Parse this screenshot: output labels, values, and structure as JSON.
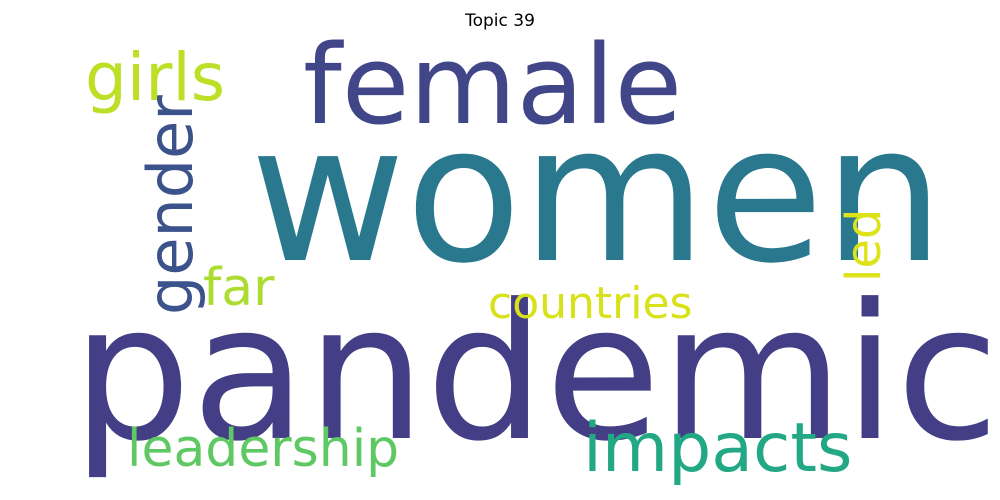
{
  "title": "Topic 39",
  "words": [
    {
      "id": "women",
      "text": "women",
      "color": "#2a788e",
      "orientation": "horizontal"
    },
    {
      "id": "pandemic",
      "text": "pandemic",
      "color": "#433e85",
      "orientation": "horizontal"
    },
    {
      "id": "female",
      "text": "female",
      "color": "#404688",
      "orientation": "horizontal"
    },
    {
      "id": "girls",
      "text": "girls",
      "color": "#bddf26",
      "orientation": "horizontal"
    },
    {
      "id": "gender",
      "text": "gender",
      "color": "#3b528b",
      "orientation": "vertical"
    },
    {
      "id": "far",
      "text": "far",
      "color": "#addc30",
      "orientation": "horizontal"
    },
    {
      "id": "countries",
      "text": "countries",
      "color": "#d8e219",
      "orientation": "horizontal"
    },
    {
      "id": "led",
      "text": "led",
      "color": "#dde318",
      "orientation": "vertical"
    },
    {
      "id": "leadership",
      "text": "leadership",
      "color": "#5ec962",
      "orientation": "horizontal"
    },
    {
      "id": "impacts",
      "text": "impacts",
      "color": "#22a884",
      "orientation": "horizontal"
    }
  ]
}
